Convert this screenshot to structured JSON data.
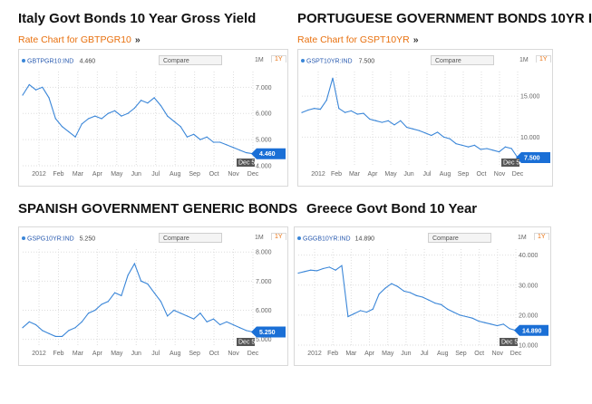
{
  "colors": {
    "line": "#3a86d8",
    "badge": "#1a6fd6",
    "accent": "#e8700e",
    "grid": "#dddddd"
  },
  "panels": [
    {
      "title": "Italy Govt Bonds 10 Year Gross Yield",
      "link": "Rate Chart for GBTPGR10",
      "link_arrow": "»",
      "ticker_label": "GBTPGR10:IND",
      "ticker_value": "4.460",
      "compare": "Compare",
      "tf_1m": "1M",
      "tf_1y": "1Y",
      "badge": "4.460",
      "date_badge": "Dec 5"
    },
    {
      "title": "PORTUGUESE GOVERNMENT BONDS 10YR I",
      "link": "Rate Chart for GSPT10YR",
      "link_arrow": "»",
      "ticker_label": "GSPT10YR:IND",
      "ticker_value": "7.500",
      "compare": "Compare",
      "tf_1m": "1M",
      "tf_1y": "1Y",
      "badge": "7.500",
      "date_badge": "Dec 5"
    },
    {
      "title": "SPANISH GOVERNMENT GENERIC BONDS",
      "link": "",
      "link_arrow": "",
      "ticker_label": "GSPG10YR:IND",
      "ticker_value": "5.250",
      "compare": "Compare",
      "tf_1m": "1M",
      "tf_1y": "1Y",
      "badge": "5.250",
      "date_badge": "Dec 5"
    },
    {
      "title": "Greece Govt Bond 10 Year",
      "link": "",
      "link_arrow": "",
      "ticker_label": "GGGB10YR:IND",
      "ticker_value": "14.890",
      "compare": "Compare",
      "tf_1m": "1M",
      "tf_1y": "1Y",
      "badge": "14.890",
      "date_badge": "Dec 5"
    }
  ],
  "chart_data": [
    {
      "type": "line",
      "title": "Italy Govt Bonds 10 Year Gross Yield",
      "x_ticks": [
        "2012",
        "Feb",
        "Mar",
        "Apr",
        "May",
        "Jun",
        "Jul",
        "Aug",
        "Sep",
        "Oct",
        "Nov",
        "Dec"
      ],
      "y_ticks": [
        "4.000",
        "5.000",
        "6.000",
        "7.000"
      ],
      "ylim": [
        4.0,
        7.6
      ],
      "series": [
        {
          "values": [
            6.7,
            7.1,
            6.9,
            7.0,
            6.6,
            5.8,
            5.5,
            5.3,
            5.1,
            5.6,
            5.8,
            5.9,
            5.8,
            6.0,
            6.1,
            5.9,
            6.0,
            6.2,
            6.5,
            6.4,
            6.6,
            6.3,
            5.9,
            5.7,
            5.5,
            5.1,
            5.2,
            5.0,
            5.1,
            4.9,
            4.9,
            4.8,
            4.7,
            4.6,
            4.5,
            4.46
          ]
        }
      ],
      "grid": true
    },
    {
      "type": "line",
      "title": "PORTUGUESE GOVERNMENT BONDS 10YR I",
      "x_ticks": [
        "2012",
        "Feb",
        "Mar",
        "Apr",
        "May",
        "Jun",
        "Jul",
        "Aug",
        "Sep",
        "Oct",
        "Nov",
        "Dec"
      ],
      "y_ticks": [
        "10.000",
        "15.000"
      ],
      "ylim": [
        6.5,
        18.0
      ],
      "series": [
        {
          "values": [
            13.0,
            13.3,
            13.5,
            13.4,
            14.5,
            17.2,
            13.5,
            13.0,
            13.2,
            12.8,
            12.9,
            12.2,
            12.0,
            11.8,
            12.0,
            11.5,
            12.0,
            11.2,
            11.0,
            10.8,
            10.5,
            10.2,
            10.6,
            10.0,
            9.8,
            9.2,
            9.0,
            8.8,
            9.0,
            8.5,
            8.6,
            8.4,
            8.2,
            8.8,
            8.6,
            7.5
          ]
        }
      ],
      "grid": true
    },
    {
      "type": "line",
      "title": "SPANISH GOVERNMENT GENERIC BONDS",
      "x_ticks": [
        "2012",
        "Feb",
        "Mar",
        "Apr",
        "May",
        "Jun",
        "Jul",
        "Aug",
        "Sep",
        "Oct",
        "Nov",
        "Dec"
      ],
      "y_ticks": [
        "5.000",
        "6.000",
        "7.000",
        "8.000"
      ],
      "ylim": [
        4.8,
        8.1
      ],
      "series": [
        {
          "values": [
            5.4,
            5.6,
            5.5,
            5.3,
            5.2,
            5.1,
            5.1,
            5.3,
            5.4,
            5.6,
            5.9,
            6.0,
            6.2,
            6.3,
            6.6,
            6.5,
            7.2,
            7.6,
            7.0,
            6.9,
            6.6,
            6.3,
            5.8,
            6.0,
            5.9,
            5.8,
            5.7,
            5.9,
            5.6,
            5.7,
            5.5,
            5.6,
            5.5,
            5.4,
            5.3,
            5.25
          ]
        }
      ],
      "grid": true
    },
    {
      "type": "line",
      "title": "Greece Govt Bond 10 Year",
      "x_ticks": [
        "2012",
        "Feb",
        "Mar",
        "Apr",
        "May",
        "Jun",
        "Jul",
        "Aug",
        "Sep",
        "Oct",
        "Nov",
        "Dec"
      ],
      "y_ticks": [
        "10.000",
        "20.000",
        "30.000",
        "40.000"
      ],
      "ylim": [
        10.0,
        42.0
      ],
      "series": [
        {
          "values": [
            34.0,
            34.5,
            35.0,
            34.8,
            35.5,
            36.0,
            35.0,
            36.5,
            19.5,
            20.5,
            21.5,
            21.0,
            22.0,
            27.0,
            29.0,
            30.5,
            29.5,
            28.0,
            27.5,
            26.5,
            26.0,
            25.0,
            24.0,
            23.5,
            22.0,
            21.0,
            20.0,
            19.5,
            19.0,
            18.0,
            17.5,
            17.0,
            16.5,
            17.0,
            15.5,
            14.89
          ]
        }
      ],
      "grid": true
    }
  ]
}
